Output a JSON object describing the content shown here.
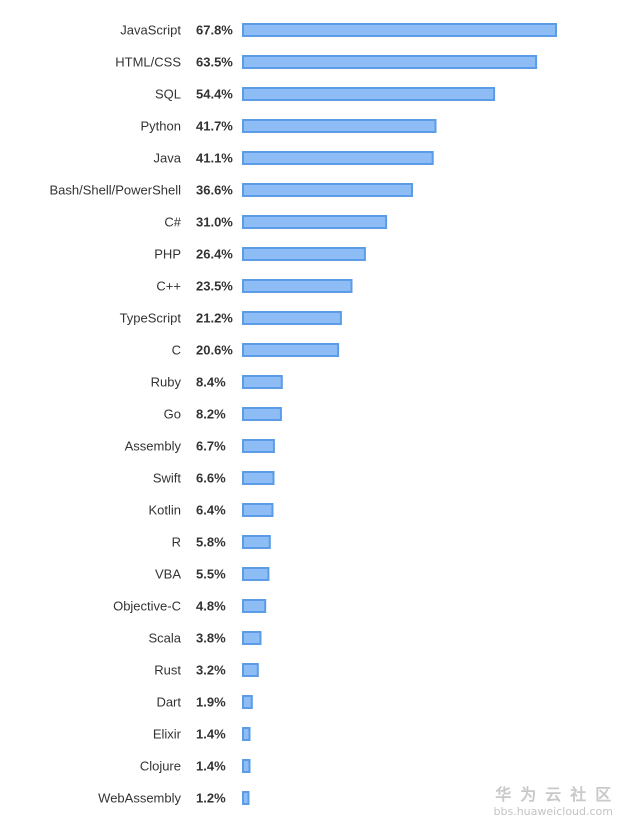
{
  "chart_data": {
    "type": "bar",
    "orientation": "horizontal",
    "categories": [
      "JavaScript",
      "HTML/CSS",
      "SQL",
      "Python",
      "Java",
      "Bash/Shell/PowerShell",
      "C#",
      "PHP",
      "C++",
      "TypeScript",
      "C",
      "Ruby",
      "Go",
      "Assembly",
      "Swift",
      "Kotlin",
      "R",
      "VBA",
      "Objective-C",
      "Scala",
      "Rust",
      "Dart",
      "Elixir",
      "Clojure",
      "WebAssembly"
    ],
    "values": [
      67.8,
      63.5,
      54.4,
      41.7,
      41.1,
      36.6,
      31.0,
      26.4,
      23.5,
      21.2,
      20.6,
      8.4,
      8.2,
      6.7,
      6.6,
      6.4,
      5.8,
      5.5,
      4.8,
      3.8,
      3.2,
      1.9,
      1.4,
      1.4,
      1.2
    ],
    "value_labels": [
      "67.8%",
      "63.5%",
      "54.4%",
      "41.7%",
      "41.1%",
      "36.6%",
      "31.0%",
      "26.4%",
      "23.5%",
      "21.2%",
      "20.6%",
      "8.4%",
      "8.2%",
      "6.7%",
      "6.6%",
      "6.4%",
      "5.8%",
      "5.5%",
      "4.8%",
      "3.8%",
      "3.2%",
      "1.9%",
      "1.4%",
      "1.4%",
      "1.2%"
    ],
    "unit": "%",
    "xlim": [
      0,
      67.8
    ],
    "grid": false,
    "legend": "none",
    "bar_fill": "#8ebdf5",
    "bar_stroke": "#5c9ce6",
    "text_color": "#333333"
  },
  "watermark": {
    "brand": "华为云社区",
    "url": "bbs.huaweicloud.com"
  }
}
